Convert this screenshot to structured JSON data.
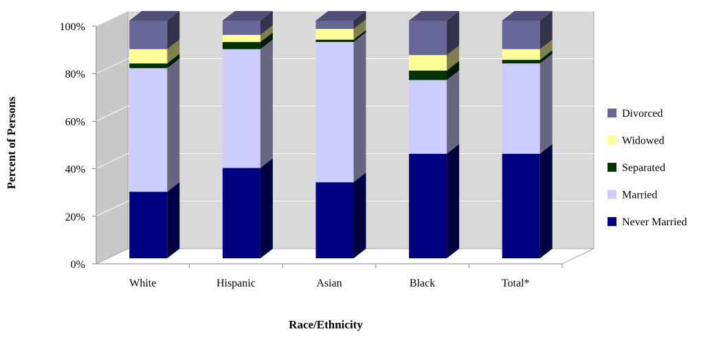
{
  "chart_data": {
    "type": "bar",
    "stacked": true,
    "three_d": true,
    "title": "",
    "xlabel": "Race/Ethnicity",
    "ylabel": "Percent of Persons",
    "ylim": [
      0,
      100
    ],
    "y_ticks": [
      "0%",
      "20%",
      "40%",
      "60%",
      "80%",
      "100%"
    ],
    "grid": true,
    "legend_position": "right",
    "categories": [
      "White",
      "Hispanic",
      "Asian",
      "Black",
      "Total*"
    ],
    "series": [
      {
        "name": "Never Married",
        "color": "#000080",
        "values": [
          28,
          38,
          32,
          44,
          44
        ]
      },
      {
        "name": "Married",
        "color": "#CCCCFF",
        "values": [
          52,
          50,
          59,
          31,
          38
        ]
      },
      {
        "name": "Separated",
        "color": "#003300",
        "values": [
          2,
          3,
          1,
          4,
          1.5
        ]
      },
      {
        "name": "Widowed",
        "color": "#FFFF99",
        "values": [
          6,
          3,
          4.5,
          6.5,
          4.5
        ]
      },
      {
        "name": "Divorced",
        "color": "#666699",
        "values": [
          12,
          6,
          3.5,
          14.5,
          12
        ]
      }
    ]
  }
}
